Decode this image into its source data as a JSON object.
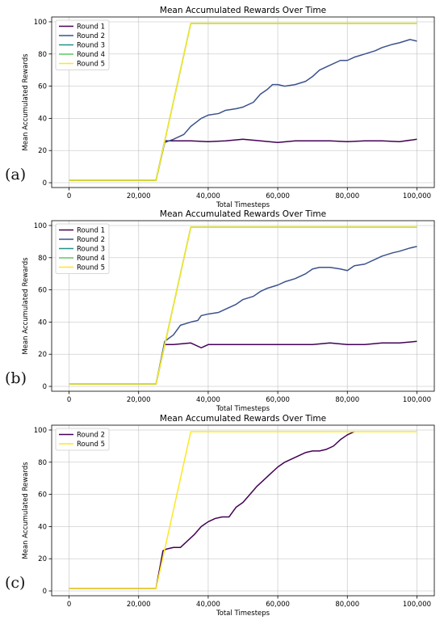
{
  "panel_labels": [
    "(a)",
    "(b)",
    "(c)"
  ],
  "colors": {
    "Round 1": "#440154",
    "Round 2": "#3b528b",
    "Round 3": "#21918c",
    "Round 4": "#5ec962",
    "Round 5": "#fde725",
    "c_Round 2": "#440154"
  },
  "chart_data": [
    {
      "type": "line",
      "title": "Mean Accumulated Rewards Over Time",
      "xlabel": "Total Timesteps",
      "ylabel": "Mean Accumulated Rewards",
      "xlim": [
        -5000,
        105000
      ],
      "ylim": [
        -3,
        103
      ],
      "xticks": [
        0,
        20000,
        40000,
        60000,
        80000,
        100000
      ],
      "xtick_labels": [
        "0",
        "20,000",
        "40,000",
        "60,000",
        "80,000",
        "100,000"
      ],
      "yticks": [
        0,
        20,
        40,
        60,
        80,
        100
      ],
      "grid": true,
      "legend": "top-left",
      "series": [
        {
          "name": "Round 1",
          "x": [
            0,
            25000,
            27500,
            30000,
            35000,
            40000,
            45000,
            50000,
            55000,
            60000,
            65000,
            70000,
            75000,
            80000,
            85000,
            90000,
            95000,
            100000
          ],
          "y": [
            1.5,
            1.5,
            26,
            26,
            26,
            25.5,
            26,
            27,
            26,
            25,
            26,
            26,
            26,
            25.5,
            26,
            26,
            25.5,
            27
          ]
        },
        {
          "name": "Round 2",
          "x": [
            0,
            25000,
            27500,
            30000,
            33000,
            35000,
            38000,
            40000,
            43000,
            45000,
            48000,
            50000,
            53000,
            55000,
            57000,
            58500,
            60000,
            62000,
            65000,
            68000,
            70000,
            72000,
            75000,
            78000,
            80000,
            82000,
            85000,
            88000,
            90000,
            93000,
            95000,
            98000,
            100000
          ],
          "y": [
            1.5,
            1.5,
            25,
            27,
            30,
            35,
            40,
            42,
            43,
            45,
            46,
            47,
            50,
            55,
            58,
            61,
            61,
            60,
            61,
            63,
            66,
            70,
            73,
            76,
            76,
            78,
            80,
            82,
            84,
            86,
            87,
            89,
            88
          ]
        },
        {
          "name": "Round 3",
          "x": [
            0,
            25000,
            35000,
            100000
          ],
          "y": [
            1.5,
            1.5,
            99,
            99
          ]
        },
        {
          "name": "Round 4",
          "x": [
            0,
            25000,
            35000,
            100000
          ],
          "y": [
            1.5,
            1.5,
            99,
            99
          ]
        },
        {
          "name": "Round 5",
          "x": [
            0,
            25000,
            35000,
            100000
          ],
          "y": [
            1.5,
            1.5,
            99,
            99
          ]
        }
      ]
    },
    {
      "type": "line",
      "title": "Mean Accumulated Rewards Over Time",
      "xlabel": "Total Timesteps",
      "ylabel": "Mean Accumulated Rewards",
      "xlim": [
        -5000,
        105000
      ],
      "ylim": [
        -3,
        103
      ],
      "xticks": [
        0,
        20000,
        40000,
        60000,
        80000,
        100000
      ],
      "xtick_labels": [
        "0",
        "20,000",
        "40,000",
        "60,000",
        "80,000",
        "100,000"
      ],
      "yticks": [
        0,
        20,
        40,
        60,
        80,
        100
      ],
      "grid": true,
      "legend": "top-left",
      "series": [
        {
          "name": "Round 1",
          "x": [
            0,
            25000,
            27500,
            30000,
            35000,
            38000,
            40000,
            45000,
            50000,
            55000,
            60000,
            65000,
            70000,
            75000,
            80000,
            85000,
            90000,
            95000,
            100000
          ],
          "y": [
            1.5,
            1.5,
            26,
            26,
            27,
            24,
            26,
            26,
            26,
            26,
            26,
            26,
            26,
            27,
            26,
            26,
            27,
            27,
            28
          ]
        },
        {
          "name": "Round 2",
          "x": [
            0,
            25000,
            27500,
            30000,
            32000,
            35000,
            37000,
            38000,
            40000,
            43000,
            45000,
            48000,
            50000,
            53000,
            55000,
            57000,
            60000,
            62000,
            65000,
            68000,
            70000,
            72000,
            75000,
            78000,
            80000,
            82000,
            85000,
            88000,
            90000,
            93000,
            95000,
            98000,
            100000
          ],
          "y": [
            1.5,
            1.5,
            28,
            32,
            38,
            40,
            41,
            44,
            45,
            46,
            48,
            51,
            54,
            56,
            59,
            61,
            63,
            65,
            67,
            70,
            73,
            74,
            74,
            73,
            72,
            75,
            76,
            79,
            81,
            83,
            84,
            86,
            87
          ]
        },
        {
          "name": "Round 3",
          "x": [
            0,
            25000,
            35000,
            100000
          ],
          "y": [
            1.5,
            1.5,
            99,
            99
          ]
        },
        {
          "name": "Round 4",
          "x": [
            0,
            25000,
            35000,
            100000
          ],
          "y": [
            1.5,
            1.5,
            99,
            99
          ]
        },
        {
          "name": "Round 5",
          "x": [
            0,
            25000,
            35000,
            100000
          ],
          "y": [
            1.5,
            1.5,
            99,
            99
          ]
        }
      ]
    },
    {
      "type": "line",
      "title": "Mean Accumulated Rewards Over Time",
      "xlabel": "Total Timesteps",
      "ylabel": "Mean Accumulated Rewards",
      "xlim": [
        -5000,
        105000
      ],
      "ylim": [
        -3,
        103
      ],
      "xticks": [
        0,
        20000,
        40000,
        60000,
        80000,
        100000
      ],
      "xtick_labels": [
        "0",
        "20,000",
        "40,000",
        "60,000",
        "80,000",
        "100,000"
      ],
      "yticks": [
        0,
        20,
        40,
        60,
        80,
        100
      ],
      "grid": true,
      "legend": "top-left",
      "series": [
        {
          "name": "Round 2",
          "x": [
            0,
            25000,
            27000,
            28000,
            30000,
            32000,
            34000,
            36000,
            38000,
            40000,
            42000,
            44000,
            46000,
            48000,
            50000,
            52000,
            54000,
            56000,
            58000,
            60000,
            62000,
            64000,
            66000,
            68000,
            70000,
            72000,
            74000,
            76000,
            78000,
            80000,
            82000
          ],
          "y": [
            1.5,
            1.5,
            25,
            26,
            27,
            27,
            31,
            35,
            40,
            43,
            45,
            46,
            46,
            52,
            55,
            60,
            65,
            69,
            73,
            77,
            80,
            82,
            84,
            86,
            87,
            87,
            88,
            90,
            94,
            97,
            99
          ]
        },
        {
          "name": "Round 5",
          "x": [
            0,
            25000,
            35000,
            100000
          ],
          "y": [
            1.5,
            1.5,
            99,
            99
          ]
        }
      ]
    }
  ]
}
